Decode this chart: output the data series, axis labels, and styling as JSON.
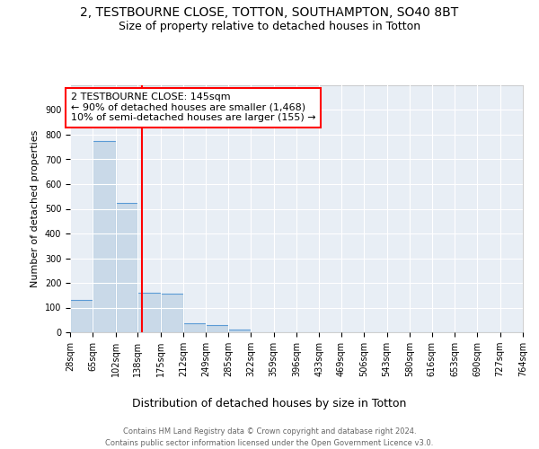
{
  "title": "2, TESTBOURNE CLOSE, TOTTON, SOUTHAMPTON, SO40 8BT",
  "subtitle": "Size of property relative to detached houses in Totton",
  "xlabel": "Distribution of detached houses by size in Totton",
  "ylabel": "Number of detached properties",
  "bin_edges": [
    28,
    65,
    102,
    138,
    175,
    212,
    249,
    285,
    322,
    359,
    396,
    433,
    469,
    506,
    543,
    580,
    616,
    653,
    690,
    727,
    764
  ],
  "bar_heights": [
    130,
    775,
    525,
    160,
    155,
    35,
    30,
    10,
    0,
    0,
    0,
    0,
    0,
    0,
    0,
    0,
    0,
    0,
    0,
    0
  ],
  "bar_color": "#c9d9e8",
  "bar_edge_color": "#5b9bd5",
  "red_line_x": 145,
  "annotation_title": "2 TESTBOURNE CLOSE: 145sqm",
  "annotation_line1": "← 90% of detached houses are smaller (1,468)",
  "annotation_line2": "10% of semi-detached houses are larger (155) →",
  "footer_line1": "Contains HM Land Registry data © Crown copyright and database right 2024.",
  "footer_line2": "Contains public sector information licensed under the Open Government Licence v3.0.",
  "ylim": [
    0,
    1000
  ],
  "yticks": [
    0,
    100,
    200,
    300,
    400,
    500,
    600,
    700,
    800,
    900,
    1000
  ],
  "plot_bg_color": "#e8eef5",
  "grid_color": "white",
  "title_fontsize": 10,
  "subtitle_fontsize": 9,
  "ylabel_fontsize": 8,
  "xlabel_fontsize": 9,
  "tick_fontsize": 7,
  "footer_fontsize": 6,
  "ann_fontsize": 8
}
